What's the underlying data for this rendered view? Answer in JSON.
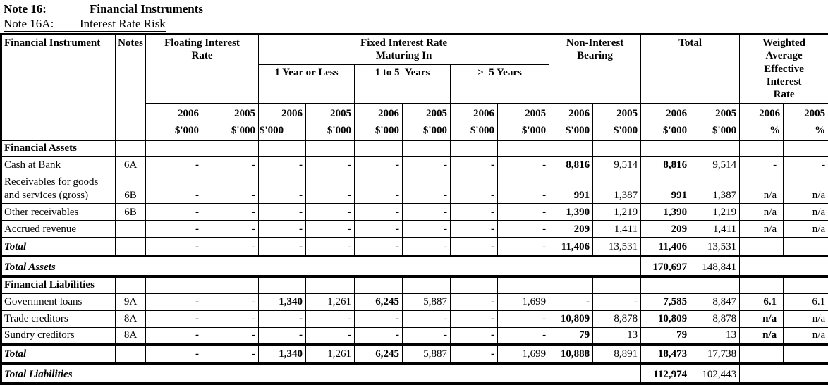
{
  "title": {
    "line1_label": "Note 16:",
    "line1_title": "Financial Instruments",
    "line2_label": "Note 16A:",
    "line2_title": "Interest Rate Risk"
  },
  "colors": {
    "text": "#000000",
    "background": "#ffffff",
    "border": "#000000"
  },
  "table": {
    "header": {
      "financial_instrument": "Financial Instrument",
      "notes": "Notes",
      "floating": "Floating Interest\nRate",
      "fixed": "Fixed Interest Rate\nMaturing In",
      "maturities": [
        "1 Year or Less",
        "1 to 5  Years",
        ">  5 Years"
      ],
      "non_interest": "Non-Interest\nBearing",
      "total": "Total",
      "weighted": "Weighted\nAverage\nEffective\nInterest\nRate"
    },
    "columns": [
      {
        "year": "2006",
        "unit": "$'000"
      },
      {
        "year": "2005",
        "unit": "$'000"
      },
      {
        "year": "2006",
        "unit": "$'000",
        "unit_align": "left"
      },
      {
        "year": "2005",
        "unit": "$'000"
      },
      {
        "year": "2006",
        "unit": "$'000"
      },
      {
        "year": "2005",
        "unit": "$'000"
      },
      {
        "year": "2006",
        "unit": "$'000"
      },
      {
        "year": "2005",
        "unit": "$'000"
      },
      {
        "year": "2006",
        "unit": "$'000"
      },
      {
        "year": "2005",
        "unit": "$'000"
      },
      {
        "year": "2006",
        "unit": "$'000"
      },
      {
        "year": "2005",
        "unit": "$'000"
      },
      {
        "year": "2006",
        "unit": "%"
      },
      {
        "year": "2005",
        "unit": "%"
      }
    ],
    "rows": [
      {
        "label": "Financial Assets",
        "note": "",
        "type": "section",
        "values": [
          "",
          "",
          "",
          "",
          "",
          "",
          "",
          "",
          "",
          "",
          "",
          "",
          "",
          ""
        ]
      },
      {
        "label": "Cash at Bank",
        "note": "6A",
        "type": "data",
        "wbold": false,
        "values": [
          "-",
          "-",
          "-",
          "-",
          "-",
          "-",
          "-",
          "-",
          "8,816",
          "9,514",
          "8,816",
          "9,514",
          "-",
          "-"
        ]
      },
      {
        "label": "Receivables for goods and services (gross)",
        "note": "6B",
        "type": "data",
        "tall": true,
        "wbold": false,
        "values": [
          "-",
          "-",
          "-",
          "-",
          "-",
          "-",
          "-",
          "-",
          "991",
          "1,387",
          "991",
          "1,387",
          "n/a",
          "n/a"
        ]
      },
      {
        "label": "Other receivables",
        "note": "6B",
        "type": "data",
        "wbold": false,
        "values": [
          "-",
          "-",
          "-",
          "-",
          "-",
          "-",
          "-",
          "-",
          "1,390",
          "1,219",
          "1,390",
          "1,219",
          "n/a",
          "n/a"
        ]
      },
      {
        "label": "Accrued revenue",
        "note": "",
        "type": "data",
        "wbold": false,
        "values": [
          "-",
          "-",
          "-",
          "-",
          "-",
          "-",
          "-",
          "-",
          "209",
          "1,411",
          "209",
          "1,411",
          "n/a",
          "n/a"
        ]
      },
      {
        "label": "Total",
        "note": "",
        "type": "total",
        "thick": true,
        "values": [
          "-",
          "-",
          "-",
          "-",
          "-",
          "-",
          "-",
          "-",
          "11,406",
          "13,531",
          "11,406",
          "13,531",
          "",
          ""
        ]
      },
      {
        "label": "Total Assets",
        "type": "grand",
        "thick": true,
        "values": [
          "170,697",
          "148,841"
        ]
      },
      {
        "label": "Financial Liabilities",
        "note": "",
        "type": "section",
        "values": [
          "",
          "",
          "",
          "",
          "",
          "",
          "",
          "",
          "",
          "",
          "",
          "",
          "",
          ""
        ]
      },
      {
        "label": "Government loans",
        "note": "9A",
        "type": "data",
        "wbold": true,
        "values": [
          "-",
          "-",
          "1,340",
          "1,261",
          "6,245",
          "5,887",
          "-",
          "1,699",
          "-",
          "-",
          "7,585",
          "8,847",
          "6.1",
          "6.1"
        ]
      },
      {
        "label": "Trade creditors",
        "note": "8A",
        "type": "data",
        "wbold": true,
        "values": [
          "-",
          "-",
          "-",
          "-",
          "-",
          "-",
          "-",
          "-",
          "10,809",
          "8,878",
          "10,809",
          "8,878",
          "n/a",
          "n/a"
        ]
      },
      {
        "label": "Sundry creditors",
        "note": "8A",
        "type": "data",
        "thick": true,
        "wbold": true,
        "values": [
          "-",
          "-",
          "-",
          "-",
          "-",
          "-",
          "-",
          "-",
          "79",
          "13",
          "79",
          "13",
          "n/a",
          "n/a"
        ]
      },
      {
        "label": "Total",
        "note": "",
        "type": "total",
        "thick": true,
        "values": [
          "-",
          "-",
          "1,340",
          "1,261",
          "6,245",
          "5,887",
          "-",
          "1,699",
          "10,888",
          "8,891",
          "18,473",
          "17,738",
          "",
          ""
        ]
      },
      {
        "label": "Total Liabilities",
        "type": "grand",
        "values": [
          "112,974",
          "102,443"
        ]
      }
    ]
  }
}
